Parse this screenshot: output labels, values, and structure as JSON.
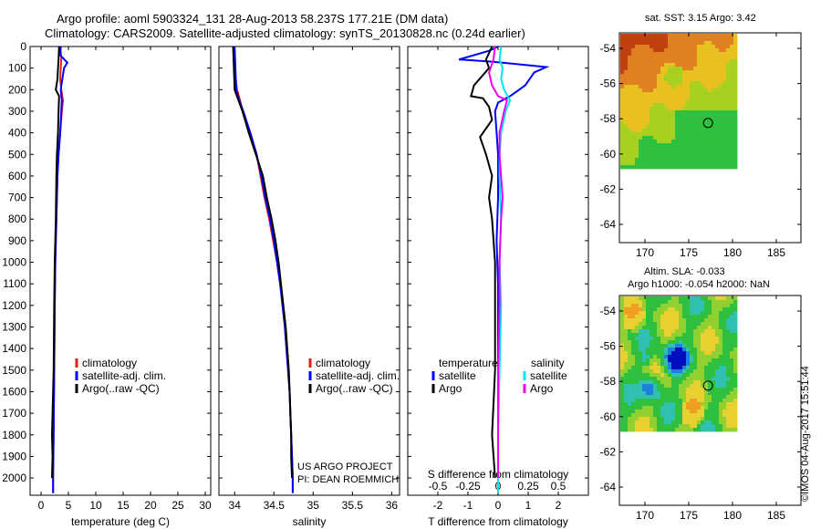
{
  "header": {
    "line1": "Argo profile: aoml 5903324_131 28-Aug-2013 58.237S 177.21E (DM data)",
    "line2": "Climatology: CARS2009. Satellite-adjusted climatology: synTS_20130828.nc (0.24d earlier)"
  },
  "colors": {
    "climatology": "#e02020",
    "satellite": "#0000ff",
    "argo": "#000000",
    "sat_salinity": "#00e5ee",
    "argo_salinity": "#ee00ee"
  },
  "legends": {
    "temp": [
      "climatology",
      "satellite-adj. clim.",
      "Argo(..raw -QC)"
    ],
    "sal": [
      "climatology",
      "satellite-adj. clim.",
      "Argo(..raw -QC)"
    ],
    "diff_temp_header": "temperature",
    "diff_sal_header": "salinity",
    "diff_temp": [
      "satellite",
      "Argo"
    ],
    "diff_sal": [
      "satellite",
      "Argo"
    ]
  },
  "notes": {
    "project_line1": "US ARGO PROJECT",
    "project_line2": "PI: DEAN ROEMMICH"
  },
  "maps": {
    "sst_title": "sat. SST: 3.15 Argo: 3.42",
    "sla_title_line1": "Altim. SLA: -0.033",
    "sla_title_line2": "Argo h1000: -0.054 h2000: NaN",
    "y_ticks": [
      "-54",
      "-56",
      "-58",
      "-60",
      "-62",
      "-64"
    ],
    "x_ticks": [
      "170",
      "175",
      "180",
      "185"
    ],
    "argo_position": {
      "lon": 177.21,
      "lat": -58.237
    }
  },
  "stamp": "©IMOS 04-Aug-2017 15:51:44",
  "chart_data": [
    {
      "type": "line",
      "name": "temperature",
      "xlabel": "temperature (deg C)",
      "ylabel": "",
      "xlim": [
        -2,
        31
      ],
      "ylim": [
        2080,
        0
      ],
      "x_ticks": [
        0,
        5,
        10,
        15,
        20,
        25,
        30
      ],
      "y_ticks": [
        0,
        100,
        200,
        300,
        400,
        500,
        600,
        700,
        800,
        900,
        1000,
        1100,
        1200,
        1300,
        1400,
        1500,
        1600,
        1700,
        1800,
        1900,
        2000
      ],
      "series": [
        {
          "name": "climatology",
          "color": "#e02020",
          "points": [
            [
              3.5,
              0
            ],
            [
              3.7,
              50
            ],
            [
              3.6,
              100
            ],
            [
              3.5,
              150
            ],
            [
              3.7,
              200
            ],
            [
              4.0,
              250
            ],
            [
              3.8,
              300
            ],
            [
              3.5,
              400
            ],
            [
              3.2,
              500
            ],
            [
              3.0,
              600
            ],
            [
              2.8,
              800
            ],
            [
              2.6,
              1000
            ],
            [
              2.5,
              1200
            ],
            [
              2.4,
              1500
            ],
            [
              2.3,
              1800
            ],
            [
              2.2,
              2000
            ],
            [
              2.2,
              2070
            ]
          ]
        },
        {
          "name": "satellite-adj. clim.",
          "color": "#0000ff",
          "points": [
            [
              3.6,
              0
            ],
            [
              3.5,
              40
            ],
            [
              4.8,
              75
            ],
            [
              4.2,
              100
            ],
            [
              3.9,
              150
            ],
            [
              3.6,
              200
            ],
            [
              3.8,
              250
            ],
            [
              3.7,
              300
            ],
            [
              3.5,
              400
            ],
            [
              3.2,
              500
            ],
            [
              3.0,
              600
            ],
            [
              2.8,
              800
            ],
            [
              2.6,
              1000
            ],
            [
              2.5,
              1200
            ],
            [
              2.4,
              1500
            ],
            [
              2.3,
              1800
            ],
            [
              2.2,
              2000
            ],
            [
              2.2,
              2070
            ]
          ]
        },
        {
          "name": "Argo(..raw -QC)",
          "color": "#000000",
          "points": [
            [
              3.3,
              0
            ],
            [
              3.2,
              60
            ],
            [
              3.1,
              100
            ],
            [
              3.0,
              150
            ],
            [
              2.7,
              200
            ],
            [
              3.3,
              230
            ],
            [
              3.2,
              300
            ],
            [
              3.1,
              400
            ],
            [
              2.9,
              500
            ],
            [
              2.8,
              600
            ],
            [
              2.7,
              800
            ],
            [
              2.5,
              1000
            ],
            [
              2.4,
              1200
            ],
            [
              2.3,
              1500
            ],
            [
              2.1,
              1700
            ],
            [
              2.0,
              1800
            ],
            [
              2.1,
              1900
            ],
            [
              2.0,
              2000
            ]
          ]
        }
      ]
    },
    {
      "type": "line",
      "name": "salinity",
      "xlabel": "salinity",
      "ylabel": "",
      "xlim": [
        33.8,
        36.1
      ],
      "ylim": [
        2080,
        0
      ],
      "x_ticks": [
        34,
        34.5,
        35,
        35.5,
        36
      ],
      "series": [
        {
          "name": "climatology",
          "color": "#e02020",
          "points": [
            [
              33.99,
              0
            ],
            [
              34.0,
              100
            ],
            [
              34.03,
              200
            ],
            [
              34.07,
              250
            ],
            [
              34.1,
              300
            ],
            [
              34.2,
              400
            ],
            [
              34.28,
              500
            ],
            [
              34.33,
              600
            ],
            [
              34.38,
              700
            ],
            [
              34.44,
              800
            ],
            [
              34.49,
              900
            ],
            [
              34.54,
              1000
            ],
            [
              34.58,
              1100
            ],
            [
              34.61,
              1200
            ],
            [
              34.64,
              1300
            ],
            [
              34.66,
              1400
            ],
            [
              34.68,
              1500
            ],
            [
              34.7,
              1600
            ],
            [
              34.71,
              1700
            ],
            [
              34.72,
              1800
            ],
            [
              34.73,
              1900
            ],
            [
              34.74,
              2000
            ],
            [
              34.74,
              2070
            ]
          ]
        },
        {
          "name": "satellite-adj. clim.",
          "color": "#0000ff",
          "points": [
            [
              34.0,
              0
            ],
            [
              34.01,
              100
            ],
            [
              34.02,
              200
            ],
            [
              34.06,
              250
            ],
            [
              34.11,
              300
            ],
            [
              34.2,
              400
            ],
            [
              34.28,
              500
            ],
            [
              34.34,
              600
            ],
            [
              34.39,
              700
            ],
            [
              34.45,
              800
            ],
            [
              34.5,
              900
            ],
            [
              34.54,
              1000
            ],
            [
              34.58,
              1100
            ],
            [
              34.61,
              1200
            ],
            [
              34.64,
              1300
            ],
            [
              34.66,
              1400
            ],
            [
              34.68,
              1500
            ],
            [
              34.7,
              1600
            ],
            [
              34.71,
              1700
            ],
            [
              34.72,
              1800
            ],
            [
              34.73,
              1900
            ],
            [
              34.74,
              2000
            ],
            [
              34.74,
              2070
            ]
          ]
        },
        {
          "name": "Argo(..raw -QC)",
          "color": "#000000",
          "points": [
            [
              33.98,
              0
            ],
            [
              33.99,
              100
            ],
            [
              34.0,
              200
            ],
            [
              34.05,
              250
            ],
            [
              34.1,
              300
            ],
            [
              34.18,
              400
            ],
            [
              34.27,
              500
            ],
            [
              34.36,
              600
            ],
            [
              34.41,
              700
            ],
            [
              34.47,
              800
            ],
            [
              34.52,
              900
            ],
            [
              34.56,
              1000
            ],
            [
              34.59,
              1100
            ],
            [
              34.62,
              1200
            ],
            [
              34.65,
              1300
            ],
            [
              34.67,
              1400
            ],
            [
              34.69,
              1500
            ],
            [
              34.7,
              1600
            ],
            [
              34.71,
              1700
            ],
            [
              34.72,
              1800
            ],
            [
              34.72,
              1900
            ],
            [
              34.73,
              2000
            ]
          ]
        }
      ]
    },
    {
      "type": "line",
      "name": "difference",
      "xlabel": "T difference from climatology",
      "x2label": "S difference from climatology",
      "ylabel": "",
      "xlim": [
        -3,
        3
      ],
      "ylim": [
        2080,
        0
      ],
      "x_ticks": [
        -2,
        -1,
        0,
        1,
        2
      ],
      "x2_ticks": [
        -0.5,
        -0.25,
        0,
        0.25,
        0.5
      ],
      "series": [
        {
          "name": "temperature satellite",
          "color": "#0000ff",
          "points": [
            [
              0,
              0
            ],
            [
              -0.3,
              20
            ],
            [
              -1.3,
              60
            ],
            [
              -0.2,
              70
            ],
            [
              0.5,
              80
            ],
            [
              1.6,
              95
            ],
            [
              1.2,
              120
            ],
            [
              0.9,
              180
            ],
            [
              0.4,
              230
            ],
            [
              0.0,
              260
            ],
            [
              -0.1,
              300
            ],
            [
              -0.05,
              400
            ],
            [
              0,
              500
            ],
            [
              0,
              700
            ],
            [
              -0.05,
              900
            ],
            [
              0,
              1100
            ],
            [
              0,
              1500
            ],
            [
              0,
              2070
            ]
          ]
        },
        {
          "name": "temperature Argo",
          "color": "#000000",
          "points": [
            [
              -0.2,
              0
            ],
            [
              -0.4,
              60
            ],
            [
              -0.3,
              100
            ],
            [
              -0.8,
              180
            ],
            [
              -0.9,
              230
            ],
            [
              -0.5,
              240
            ],
            [
              -0.3,
              280
            ],
            [
              -0.2,
              340
            ],
            [
              -0.6,
              420
            ],
            [
              -0.4,
              500
            ],
            [
              -0.2,
              600
            ],
            [
              -0.3,
              700
            ],
            [
              -0.2,
              800
            ],
            [
              -0.1,
              1000
            ],
            [
              -0.1,
              1200
            ],
            [
              -0.1,
              1500
            ],
            [
              -0.2,
              1800
            ],
            [
              -0.1,
              2000
            ]
          ]
        },
        {
          "name": "salinity satellite",
          "color": "#00e5ee",
          "points": [
            [
              0.1,
              0
            ],
            [
              0.05,
              60
            ],
            [
              0.15,
              100
            ],
            [
              0.1,
              150
            ],
            [
              0.2,
              200
            ],
            [
              0.4,
              250
            ],
            [
              0.25,
              300
            ],
            [
              0.1,
              400
            ],
            [
              0.05,
              500
            ],
            [
              0.05,
              600
            ],
            [
              0.1,
              800
            ],
            [
              0.05,
              1000
            ],
            [
              0.1,
              1200
            ],
            [
              0.05,
              1500
            ],
            [
              0,
              1800
            ],
            [
              0,
              2070
            ]
          ]
        },
        {
          "name": "salinity Argo",
          "color": "#ee00ee",
          "points": [
            [
              -0.1,
              0
            ],
            [
              -0.15,
              60
            ],
            [
              -0.3,
              120
            ],
            [
              -0.2,
              180
            ],
            [
              0.0,
              230
            ],
            [
              0.3,
              250
            ],
            [
              0.2,
              300
            ],
            [
              0.05,
              400
            ],
            [
              0.05,
              500
            ],
            [
              0.1,
              600
            ],
            [
              0.15,
              700
            ],
            [
              0.1,
              800
            ],
            [
              0.05,
              1000
            ],
            [
              0.05,
              1200
            ],
            [
              0.0,
              1500
            ],
            [
              0.0,
              1800
            ],
            [
              0.0,
              2000
            ]
          ]
        }
      ]
    }
  ]
}
